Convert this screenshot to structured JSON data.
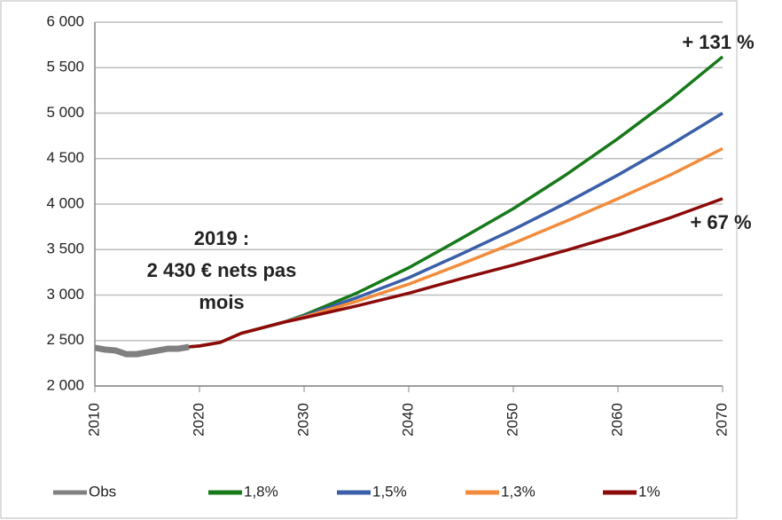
{
  "chart_data": {
    "type": "line",
    "xlim": [
      2010,
      2070
    ],
    "xticks": [
      2010,
      2020,
      2030,
      2040,
      2050,
      2060,
      2070
    ],
    "ylim": [
      2000,
      6000
    ],
    "yticks": [
      {
        "value": 2000,
        "label": "2 000"
      },
      {
        "value": 2500,
        "label": "2 500"
      },
      {
        "value": 3000,
        "label": "3 000"
      },
      {
        "value": 3500,
        "label": "3 500"
      },
      {
        "value": 4000,
        "label": "4 000"
      },
      {
        "value": 4500,
        "label": "4 500"
      },
      {
        "value": 5000,
        "label": "5 000"
      },
      {
        "value": 5500,
        "label": "5 500"
      },
      {
        "value": 6000,
        "label": "6 000"
      }
    ],
    "grid": true,
    "series": [
      {
        "name": "Obs",
        "color": "#808080",
        "x": [
          2010,
          2011,
          2012,
          2013,
          2014,
          2015,
          2016,
          2017,
          2018,
          2019
        ],
        "values": [
          2420,
          2400,
          2390,
          2350,
          2350,
          2370,
          2390,
          2410,
          2410,
          2430
        ]
      },
      {
        "name": "1,8%",
        "color": "#17791a",
        "x": [
          2019,
          2020,
          2022,
          2024,
          2026,
          2028,
          2030,
          2035,
          2040,
          2045,
          2050,
          2055,
          2060,
          2065,
          2070
        ],
        "values": [
          2430,
          2440,
          2480,
          2580,
          2640,
          2700,
          2780,
          3020,
          3300,
          3620,
          3950,
          4320,
          4720,
          5150,
          5620
        ]
      },
      {
        "name": "1,5%",
        "color": "#3a5fa8",
        "x": [
          2019,
          2020,
          2022,
          2024,
          2026,
          2028,
          2030,
          2035,
          2040,
          2045,
          2050,
          2055,
          2060,
          2065,
          2070
        ],
        "values": [
          2430,
          2440,
          2480,
          2580,
          2640,
          2700,
          2770,
          2970,
          3190,
          3450,
          3720,
          4010,
          4320,
          4650,
          5000
        ]
      },
      {
        "name": "1,3%",
        "color": "#f28c3c",
        "x": [
          2019,
          2020,
          2022,
          2024,
          2026,
          2028,
          2030,
          2035,
          2040,
          2045,
          2050,
          2055,
          2060,
          2065,
          2070
        ],
        "values": [
          2430,
          2440,
          2480,
          2580,
          2640,
          2700,
          2760,
          2930,
          3120,
          3340,
          3570,
          3810,
          4060,
          4320,
          4610
        ]
      },
      {
        "name": "1%",
        "color": "#8b0a0a",
        "x": [
          2019,
          2020,
          2022,
          2024,
          2026,
          2028,
          2030,
          2035,
          2040,
          2045,
          2050,
          2055,
          2060,
          2065,
          2070
        ],
        "values": [
          2430,
          2440,
          2480,
          2580,
          2640,
          2700,
          2750,
          2880,
          3020,
          3180,
          3330,
          3490,
          3660,
          3850,
          4060
        ]
      }
    ],
    "annotations": [
      {
        "lines": [
          "2019 :",
          "2 430 € nets pas",
          "mois"
        ],
        "color": "#1f3f8f"
      },
      {
        "lines": [
          "+ 131 %"
        ],
        "color": "#17791a"
      },
      {
        "lines": [
          "+ 67 %"
        ],
        "color": "#8b0a0a"
      }
    ]
  }
}
